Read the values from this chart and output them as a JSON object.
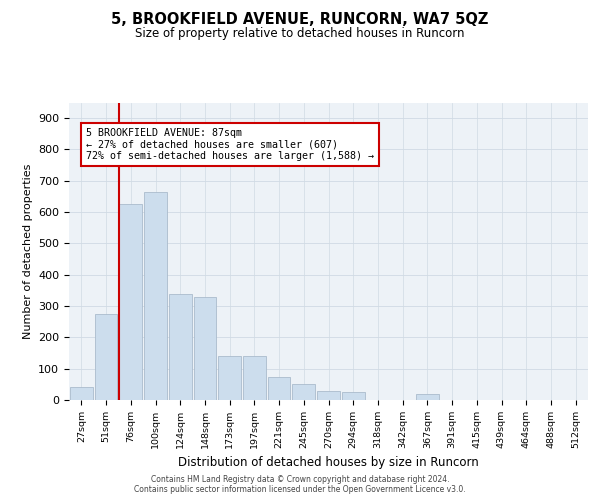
{
  "title": "5, BROOKFIELD AVENUE, RUNCORN, WA7 5QZ",
  "subtitle": "Size of property relative to detached houses in Runcorn",
  "xlabel": "Distribution of detached houses by size in Runcorn",
  "ylabel": "Number of detached properties",
  "bar_labels": [
    "27sqm",
    "51sqm",
    "76sqm",
    "100sqm",
    "124sqm",
    "148sqm",
    "173sqm",
    "197sqm",
    "221sqm",
    "245sqm",
    "270sqm",
    "294sqm",
    "318sqm",
    "342sqm",
    "367sqm",
    "391sqm",
    "415sqm",
    "439sqm",
    "464sqm",
    "488sqm",
    "512sqm"
  ],
  "bar_values": [
    40,
    275,
    625,
    665,
    340,
    330,
    140,
    140,
    75,
    50,
    30,
    25,
    0,
    0,
    20,
    0,
    0,
    0,
    0,
    0,
    0
  ],
  "bar_color": "#ccdded",
  "bar_edge_color": "#aabbcc",
  "grid_color": "#d0dae4",
  "background_color": "#edf2f7",
  "property_line_color": "#cc0000",
  "property_line_x": 1.54,
  "annotation_text": "5 BROOKFIELD AVENUE: 87sqm\n← 27% of detached houses are smaller (607)\n72% of semi-detached houses are larger (1,588) →",
  "annotation_box_facecolor": "#ffffff",
  "annotation_box_edgecolor": "#cc0000",
  "ylim": [
    0,
    950
  ],
  "yticks": [
    0,
    100,
    200,
    300,
    400,
    500,
    600,
    700,
    800,
    900
  ],
  "footer_line1": "Contains HM Land Registry data © Crown copyright and database right 2024.",
  "footer_line2": "Contains public sector information licensed under the Open Government Licence v3.0."
}
